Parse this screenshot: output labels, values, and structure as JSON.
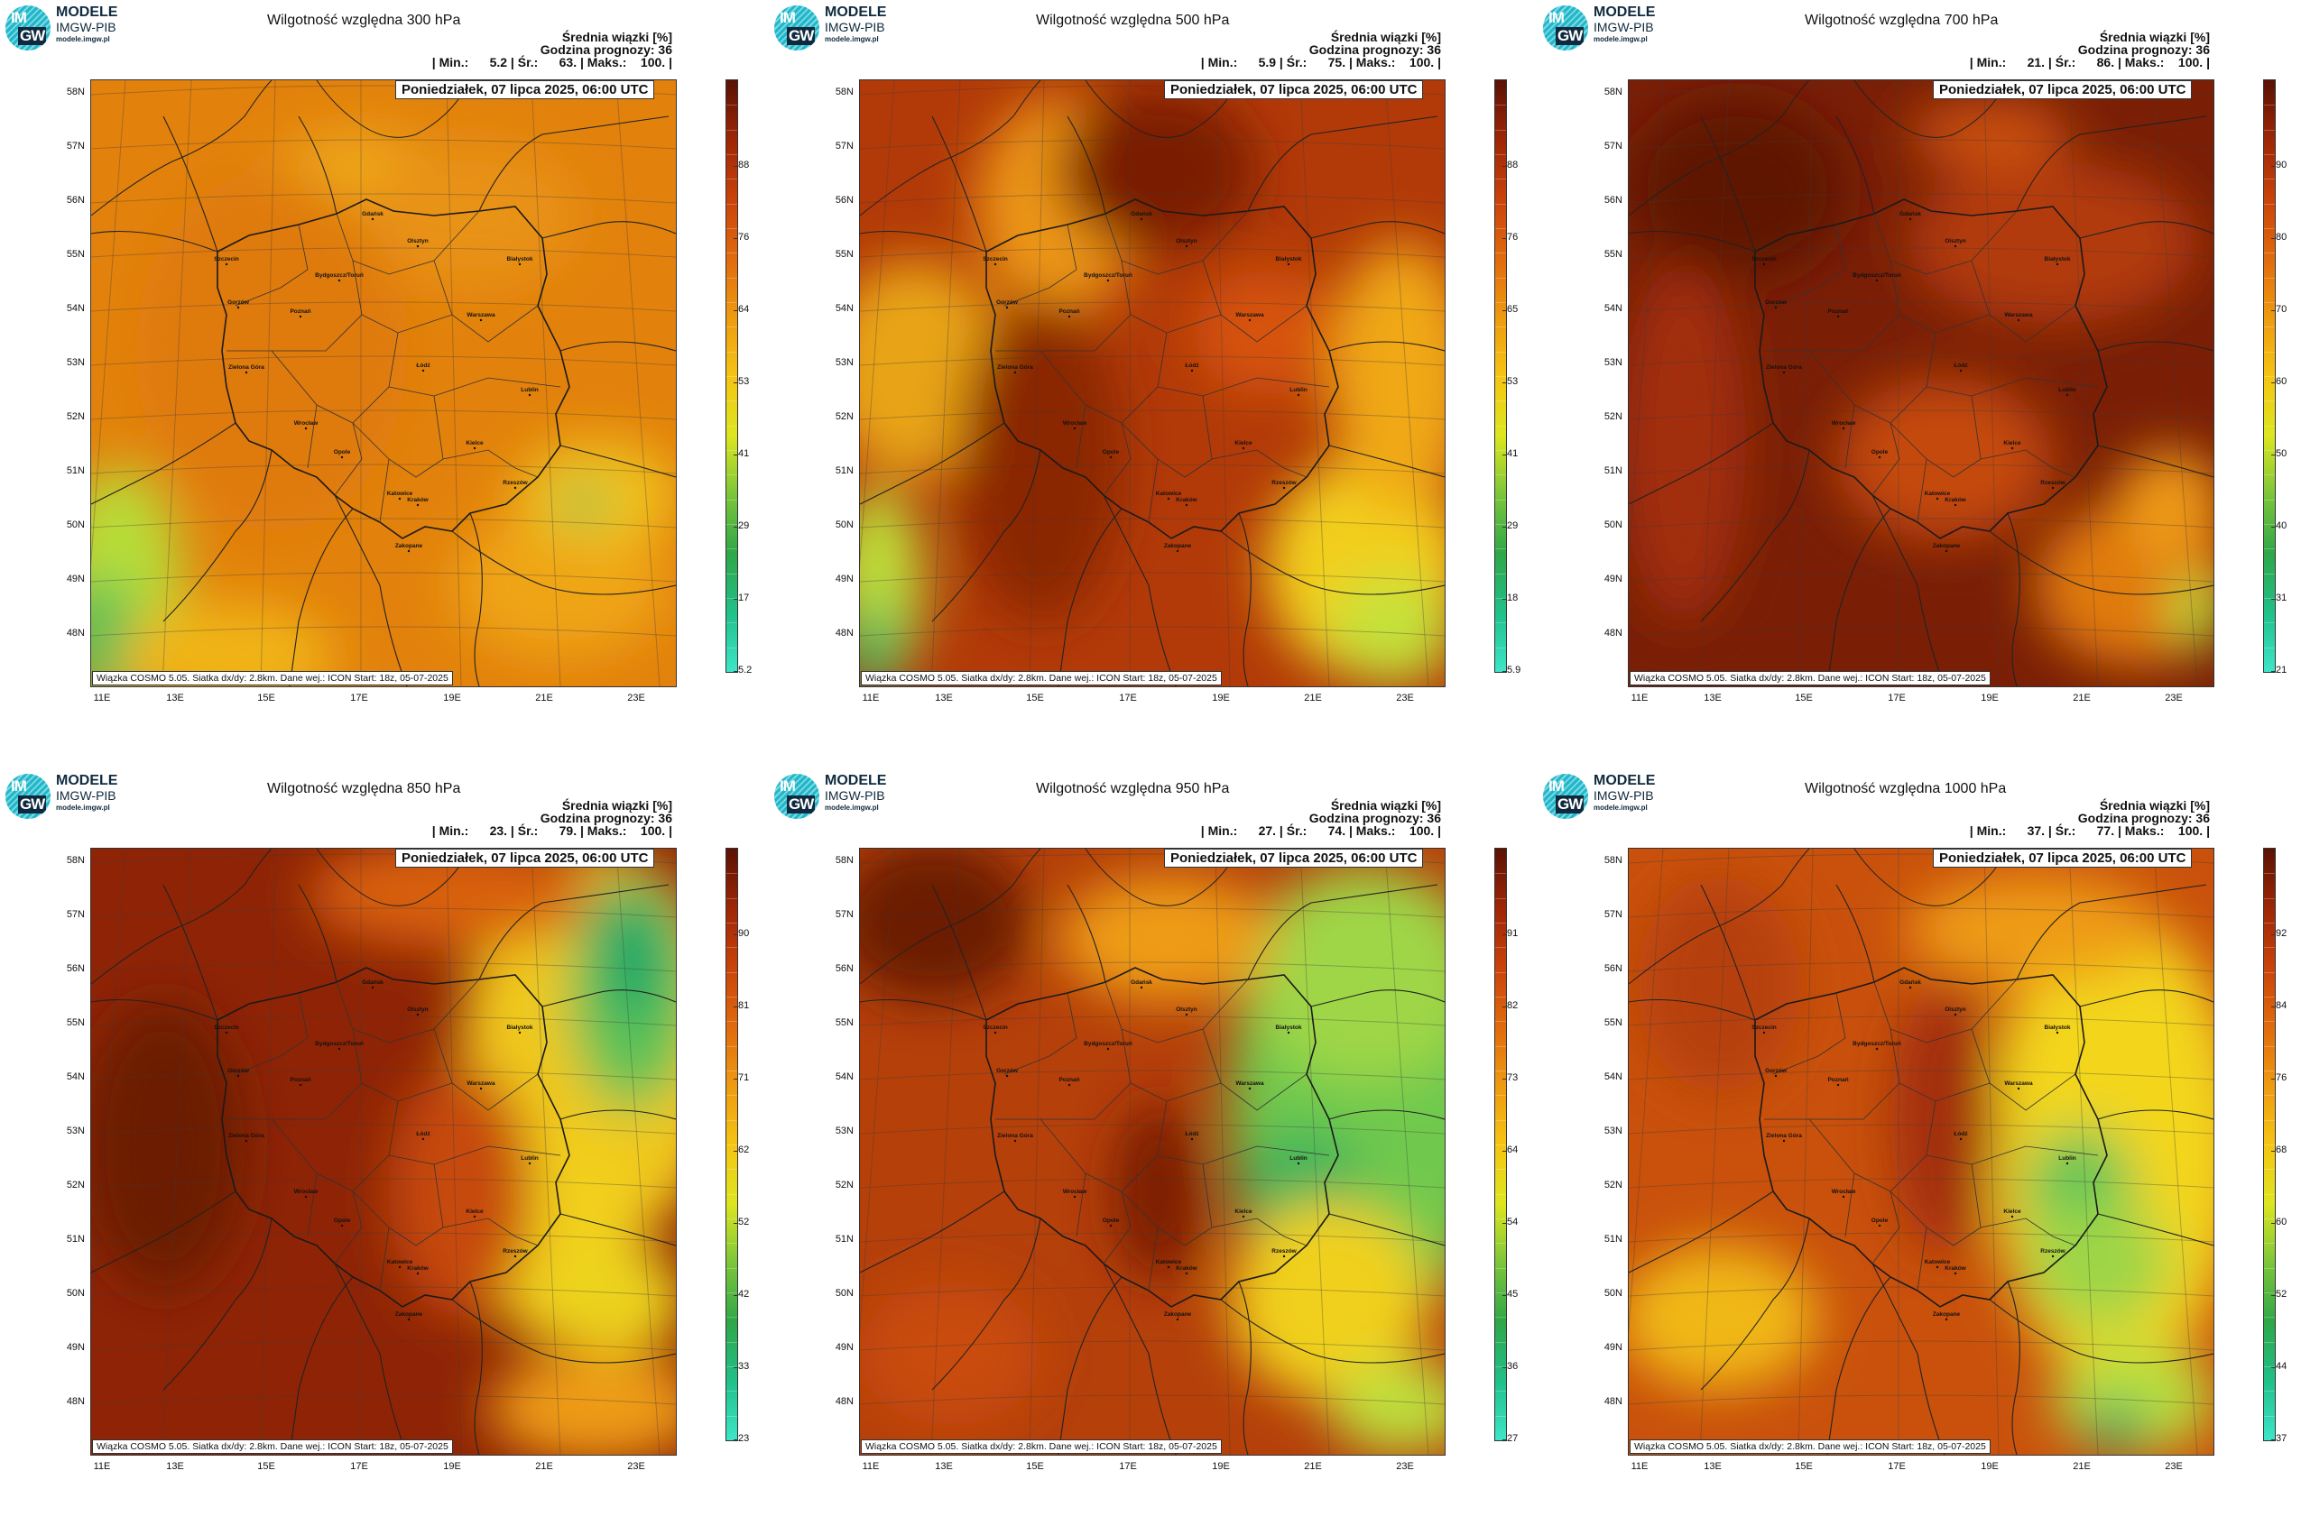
{
  "logo": {
    "line1": "MODELE",
    "line2": "IMGW-PIB",
    "line3": "modele.imgw.pl",
    "im": "IM",
    "gw": "GW"
  },
  "common": {
    "header1": "Średnia wiązki [%]",
    "header2": "Godzina prognozy: 36",
    "date": "Poniedziałek, 07 lipca 2025, 06:00 UTC",
    "footer": "Wiązka COSMO 5.05. Siatka dx/dy: 2.8km. Dane wej.: ICON Start: 18z, 05-07-2025",
    "lat_labels": [
      "58N",
      "57N",
      "56N",
      "55N",
      "54N",
      "53N",
      "52N",
      "51N",
      "50N",
      "49N",
      "48N"
    ],
    "lon_labels": [
      "11E",
      "13E",
      "15E",
      "17E",
      "19E",
      "21E",
      "23E"
    ]
  },
  "panels": [
    {
      "title": "Wilgotność względna 300 hPa",
      "stats": "| Min.:      5.2 | Śr.:      63. | Maks.:    100. |",
      "scale": [
        "5.2",
        "17",
        "29",
        "41",
        "53",
        "64",
        "76",
        "88"
      ],
      "dominant": "#e2820c",
      "palette": "300"
    },
    {
      "title": "Wilgotność względna 500 hPa",
      "stats": "| Min.:      5.9 | Śr.:      75. | Maks.:    100. |",
      "scale": [
        "5.9",
        "18",
        "29",
        "41",
        "53",
        "65",
        "76",
        "88"
      ],
      "dominant": "#b23a08",
      "palette": "500"
    },
    {
      "title": "Wilgotność względna 700 hPa",
      "stats": "| Min.:      21. | Śr.:      86. | Maks.:    100. |",
      "scale": [
        "21",
        "31",
        "40",
        "50",
        "60",
        "70",
        "80",
        "90"
      ],
      "dominant": "#7a1f06",
      "palette": "700"
    },
    {
      "title": "Wilgotność względna 850 hPa",
      "stats": "| Min.:      23. | Śr.:      79. | Maks.:    100. |",
      "scale": [
        "23",
        "33",
        "42",
        "52",
        "62",
        "71",
        "81",
        "90"
      ],
      "dominant": "#8e2405",
      "palette": "850"
    },
    {
      "title": "Wilgotność względna 950 hPa",
      "stats": "| Min.:      27. | Śr.:      74. | Maks.:    100. |",
      "scale": [
        "27",
        "36",
        "45",
        "54",
        "64",
        "73",
        "82",
        "91"
      ],
      "dominant": "#b5400a",
      "palette": "950"
    },
    {
      "title": "Wilgotność względna 1000 hPa",
      "stats": "| Min.:      37. | Śr.:      77. | Maks.:    100. |",
      "scale": [
        "37",
        "44",
        "52",
        "60",
        "68",
        "76",
        "84",
        "92"
      ],
      "dominant": "#c9510c",
      "palette": "1000"
    }
  ],
  "cities": [
    "Gdańsk",
    "Olsztyn",
    "Szczecin",
    "Bydgoszcz/Toruń",
    "Białystok",
    "Gorzów",
    "Poznań",
    "Warszawa",
    "Zielona Góra",
    "Łódź",
    "Lublin",
    "Wrocław",
    "Opole",
    "Kielce",
    "Katowice",
    "Kraków",
    "Rzeszów",
    "Zakopane"
  ],
  "colors": {
    "low": "#3de6c8",
    "green": "#28a84a",
    "yellow": "#f3e31a",
    "orange": "#e2820c",
    "red": "#b23a08",
    "darkred": "#5a1204"
  }
}
